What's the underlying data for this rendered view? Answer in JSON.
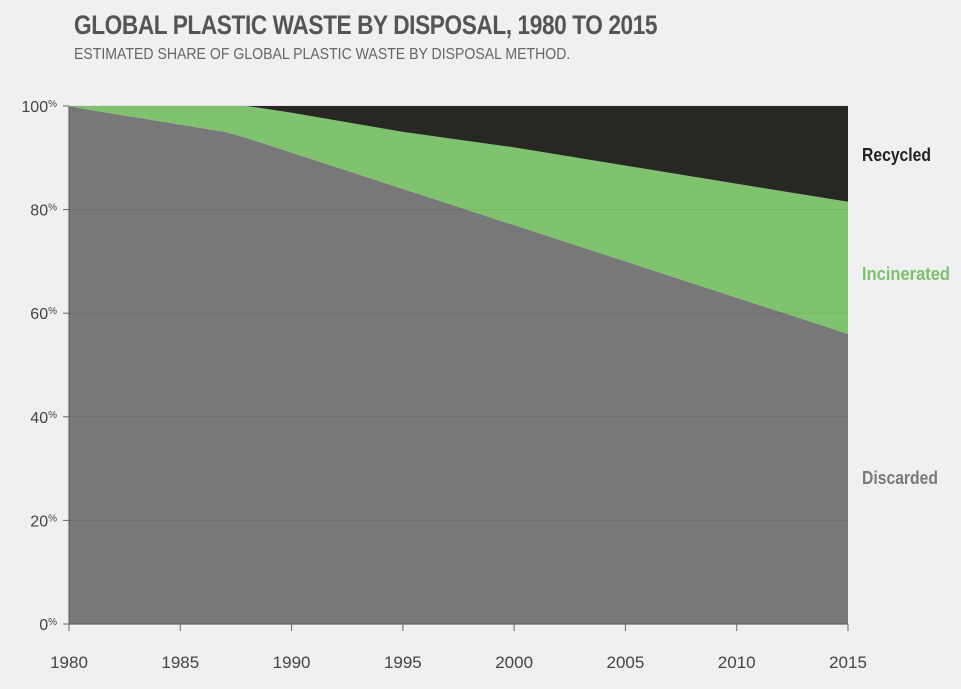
{
  "header": {
    "title": "GLOBAL PLASTIC WASTE BY DISPOSAL, 1980 TO 2015",
    "subtitle": "ESTIMATED SHARE OF GLOBAL PLASTIC WASTE BY DISPOSAL METHOD."
  },
  "chart_data": {
    "type": "area",
    "stacked": true,
    "title": "GLOBAL PLASTIC WASTE BY DISPOSAL, 1980 TO 2015",
    "subtitle": "ESTIMATED SHARE OF GLOBAL PLASTIC WASTE BY DISPOSAL METHOD.",
    "xlabel": "",
    "ylabel": "",
    "x": [
      1980,
      1981,
      1987,
      1988,
      1990,
      1995,
      2000,
      2005,
      2010,
      2015
    ],
    "xlim": [
      1980,
      2015
    ],
    "ylim": [
      0,
      100
    ],
    "xticks": [
      "1980",
      "1985",
      "1990",
      "1995",
      "2000",
      "2005",
      "2010",
      "2015"
    ],
    "yticks": [
      {
        "value": 0,
        "num": "0",
        "unit": "%"
      },
      {
        "value": 20,
        "num": "20",
        "unit": "%"
      },
      {
        "value": 40,
        "num": "40",
        "unit": "%"
      },
      {
        "value": 60,
        "num": "60",
        "unit": "%"
      },
      {
        "value": 80,
        "num": "80",
        "unit": "%"
      },
      {
        "value": 100,
        "num": "100",
        "unit": "%"
      }
    ],
    "grid": true,
    "legend": "direct labels at right",
    "series": [
      {
        "name": "Discarded",
        "color": "#787878",
        "label_color": "#7a7a7a",
        "values": [
          100,
          99.2,
          95,
          93.8,
          91,
          84,
          77,
          70,
          63,
          56
        ]
      },
      {
        "name": "Incinerated",
        "color": "#80c36f",
        "label_color": "#7cc16b",
        "values": [
          0,
          0.8,
          5,
          6.2,
          7.7,
          11,
          15,
          18.5,
          22,
          25.5
        ]
      },
      {
        "name": "Recycled",
        "color": "#272724",
        "label_color": "#222222",
        "values": [
          0,
          0,
          0,
          0,
          1.3,
          5,
          8,
          11.5,
          15,
          18.5
        ]
      }
    ]
  }
}
